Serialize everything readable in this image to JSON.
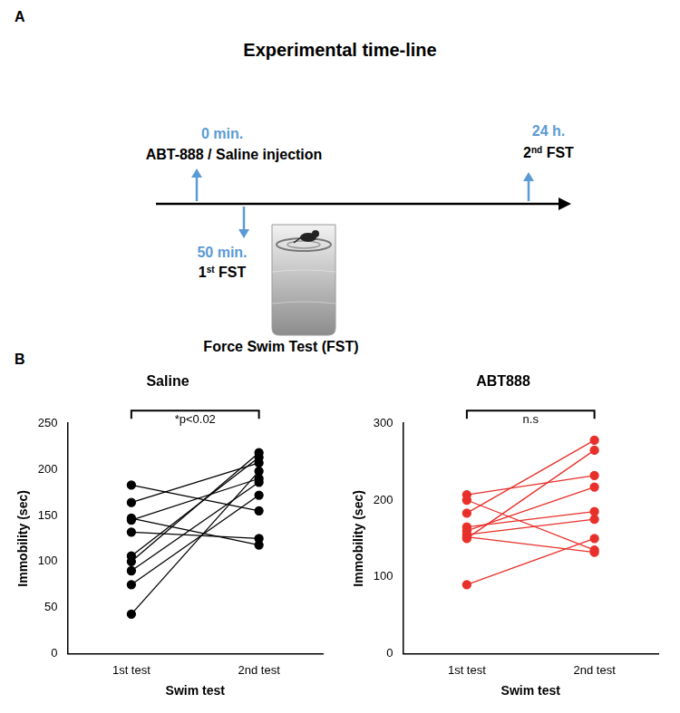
{
  "panel_labels": [
    "A",
    "B"
  ],
  "timeline": {
    "title": "Experimental time-line",
    "events": [
      {
        "time": "0 min.",
        "label": "ABT-888 / Saline injection"
      },
      {
        "time": "50 min.",
        "label": "1st FST"
      },
      {
        "time": "24 h.",
        "label": "2nd FST"
      }
    ],
    "image_caption": "Force Swim Test (FST)"
  },
  "chart_data": [
    {
      "type": "line",
      "title": "Saline",
      "x_label": "Swim test",
      "y_label": "Immobility (sec)",
      "categories": [
        "1st test",
        "2nd test"
      ],
      "series": [
        {
          "values": [
            183,
            155
          ]
        },
        {
          "values": [
            164,
            207
          ]
        },
        {
          "values": [
            147,
            118
          ]
        },
        {
          "values": [
            145,
            190
          ]
        },
        {
          "values": [
            132,
            125
          ]
        },
        {
          "values": [
            106,
            213
          ]
        },
        {
          "values": [
            100,
            218
          ]
        },
        {
          "values": [
            90,
            186
          ]
        },
        {
          "values": [
            75,
            172
          ]
        },
        {
          "values": [
            43,
            198
          ]
        }
      ],
      "color": "#000000",
      "marker": "circle",
      "ylim": [
        0,
        250
      ],
      "yticks": [
        0,
        50,
        100,
        150,
        200,
        250
      ],
      "grid": false,
      "annotation": "*p<0.02"
    },
    {
      "type": "line",
      "title": "ABT888",
      "x_label": "Swim test",
      "y_label": "Immobility (sec)",
      "categories": [
        "1st test",
        "2nd test"
      ],
      "series": [
        {
          "values": [
            207,
            232
          ]
        },
        {
          "values": [
            200,
            135
          ]
        },
        {
          "values": [
            183,
            278
          ]
        },
        {
          "values": [
            165,
            185
          ]
        },
        {
          "values": [
            160,
            217
          ]
        },
        {
          "values": [
            155,
            175
          ]
        },
        {
          "values": [
            152,
            132
          ]
        },
        {
          "values": [
            150,
            265
          ]
        },
        {
          "values": [
            90,
            150
          ]
        }
      ],
      "color": "#e8302a",
      "marker": "circle",
      "ylim": [
        0,
        300
      ],
      "yticks": [
        0,
        100,
        200,
        300
      ],
      "grid": false,
      "annotation": "n.s"
    }
  ]
}
